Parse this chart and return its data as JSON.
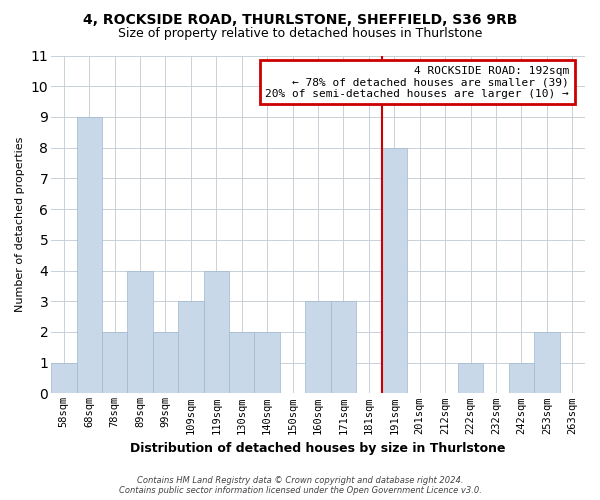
{
  "title": "4, ROCKSIDE ROAD, THURLSTONE, SHEFFIELD, S36 9RB",
  "subtitle": "Size of property relative to detached houses in Thurlstone",
  "xlabel": "Distribution of detached houses by size in Thurlstone",
  "ylabel": "Number of detached properties",
  "categories": [
    "58sqm",
    "68sqm",
    "78sqm",
    "89sqm",
    "99sqm",
    "109sqm",
    "119sqm",
    "130sqm",
    "140sqm",
    "150sqm",
    "160sqm",
    "171sqm",
    "181sqm",
    "191sqm",
    "201sqm",
    "212sqm",
    "222sqm",
    "232sqm",
    "242sqm",
    "253sqm",
    "263sqm"
  ],
  "values": [
    1,
    9,
    2,
    4,
    2,
    3,
    4,
    2,
    2,
    0,
    3,
    3,
    0,
    8,
    0,
    0,
    1,
    0,
    1,
    2,
    0
  ],
  "bar_color": "#c8d8e8",
  "bar_edge_color": "#a0b8d0",
  "highlight_index": 13,
  "highlight_line_color": "#cc0000",
  "ylim": [
    0,
    11
  ],
  "yticks": [
    0,
    1,
    2,
    3,
    4,
    5,
    6,
    7,
    8,
    9,
    10,
    11
  ],
  "annotation_title": "4 ROCKSIDE ROAD: 192sqm",
  "annotation_line1": "← 78% of detached houses are smaller (39)",
  "annotation_line2": "20% of semi-detached houses are larger (10) →",
  "annotation_box_color": "#ffffff",
  "annotation_box_edge": "#cc0000",
  "footer_line1": "Contains HM Land Registry data © Crown copyright and database right 2024.",
  "footer_line2": "Contains public sector information licensed under the Open Government Licence v3.0.",
  "background_color": "#ffffff",
  "grid_color": "#c8d0d8"
}
